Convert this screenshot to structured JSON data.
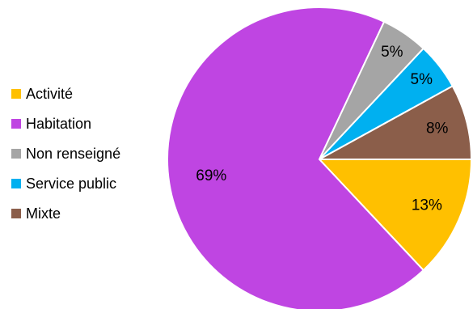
{
  "chart_data": {
    "type": "pie",
    "title": "",
    "legend_position": "left",
    "slices": [
      {
        "label": "Activité",
        "value": 13,
        "value_label": "13%",
        "color": "#FFC000"
      },
      {
        "label": "Habitation",
        "value": 69,
        "value_label": "69%",
        "color": "#BF45E2"
      },
      {
        "label": "Non renseigné",
        "value": 5,
        "value_label": "5%",
        "color": "#A5A5A5"
      },
      {
        "label": "Service public",
        "value": 5,
        "value_label": "5%",
        "color": "#00B0F0"
      },
      {
        "label": "Mixte",
        "value": 8,
        "value_label": "8%",
        "color": "#8B5E4A"
      }
    ]
  }
}
